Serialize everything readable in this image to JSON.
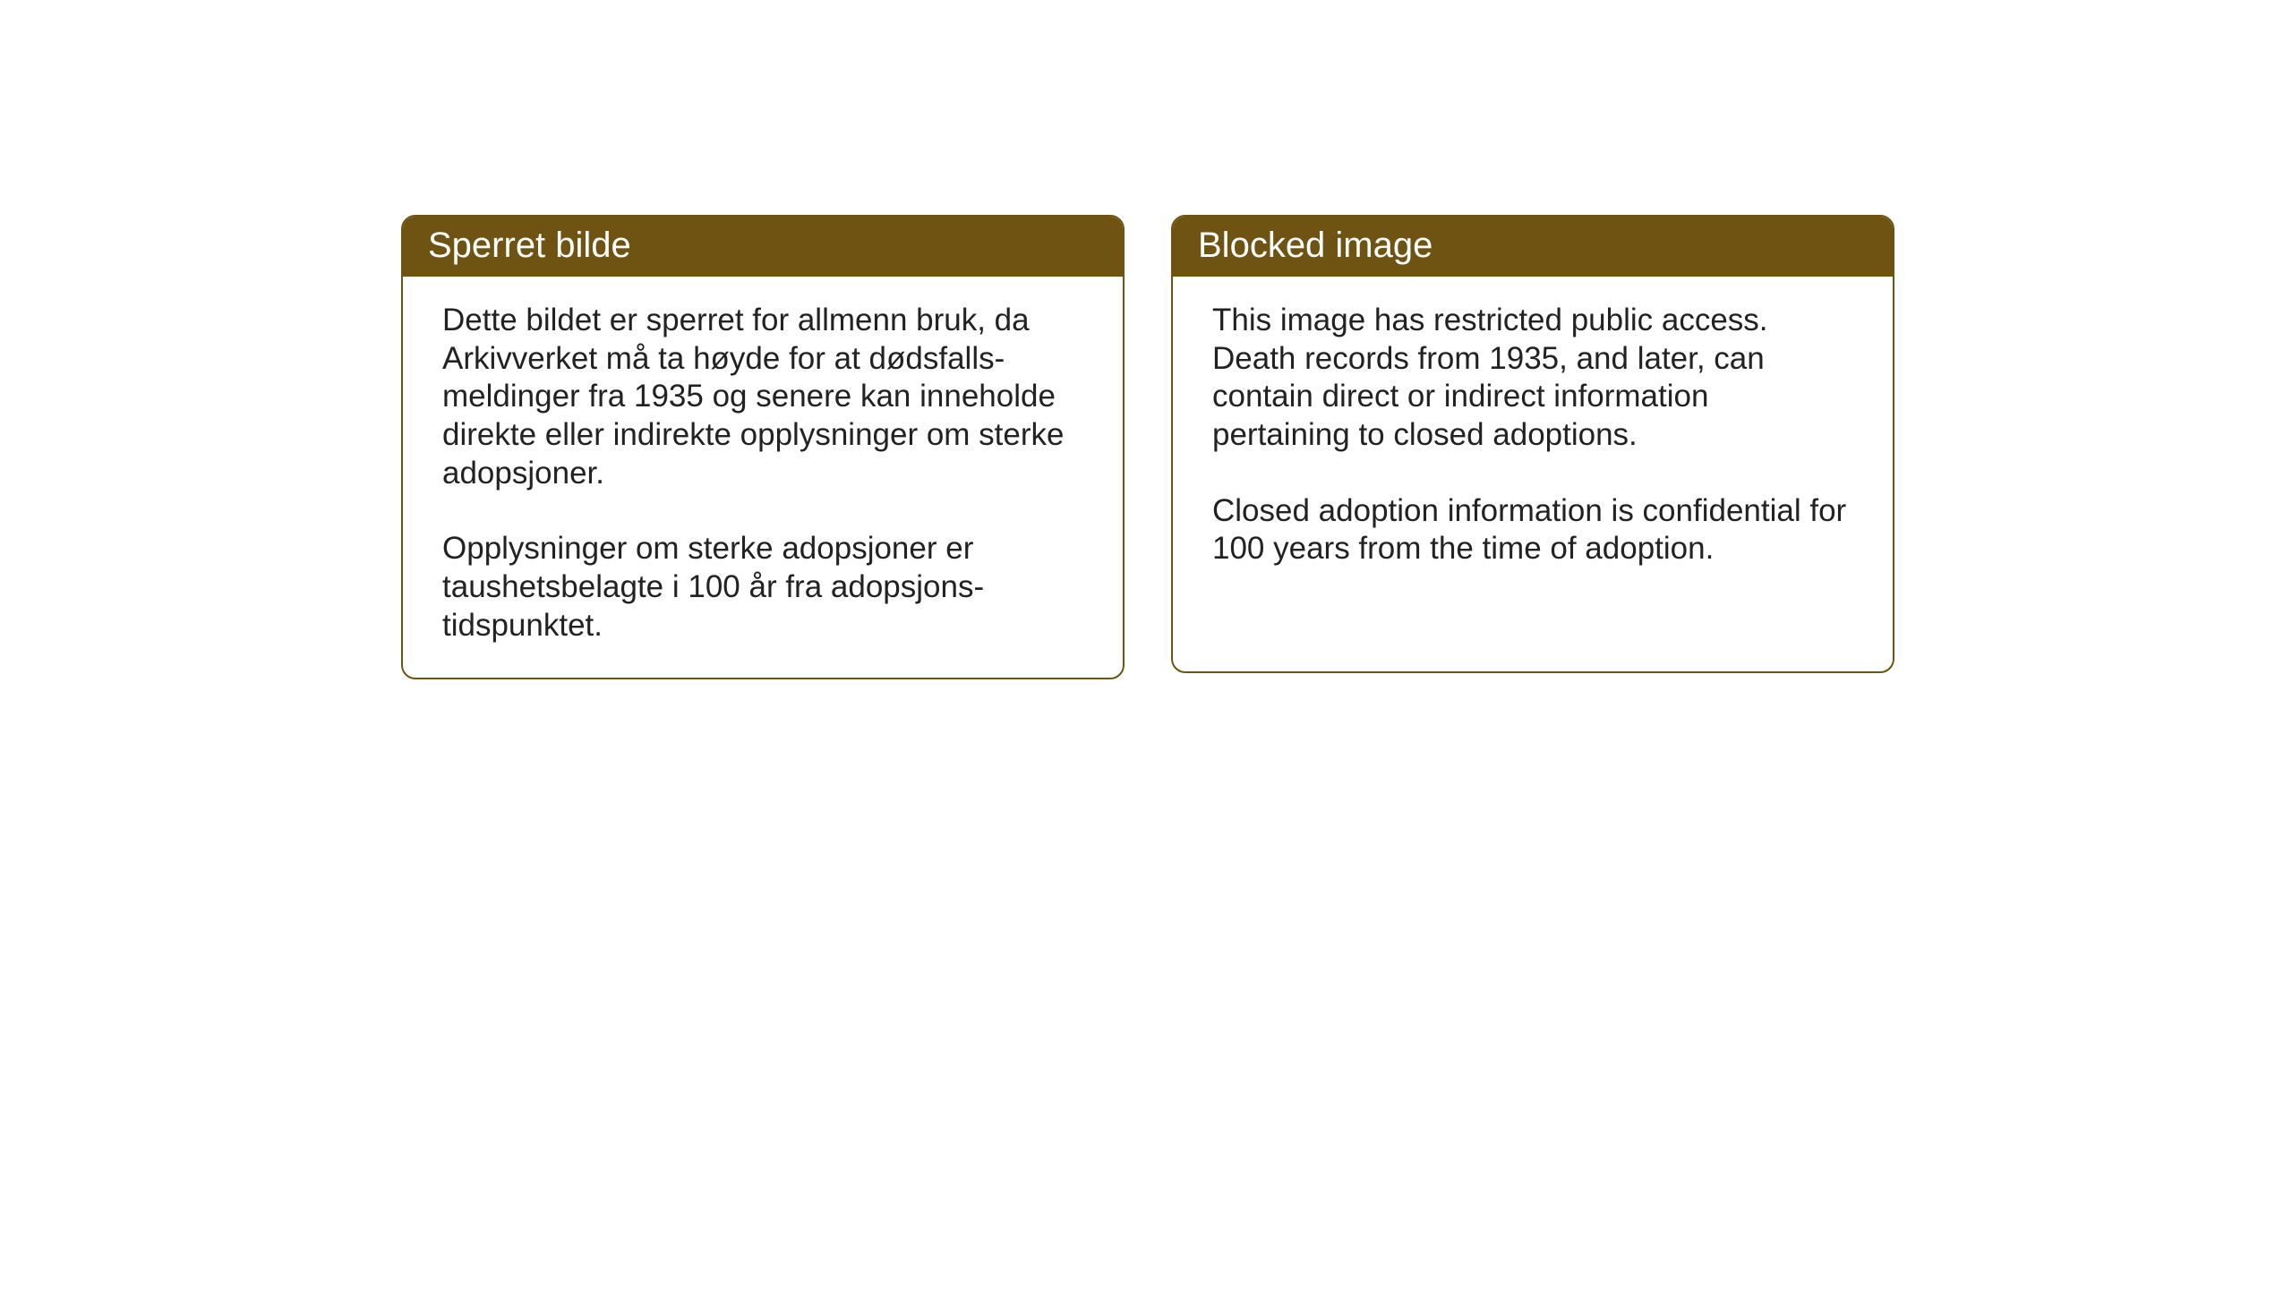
{
  "layout": {
    "background_color": "#ffffff",
    "card_border_color": "#6f5312",
    "header_bg_color": "#6f5312",
    "header_text_color": "#ffffff",
    "body_text_color": "#222222",
    "header_fontsize": 40,
    "body_fontsize": 35
  },
  "cards": {
    "norwegian": {
      "title": "Sperret bilde",
      "paragraph1": "Dette bildet er sperret for allmenn bruk, da Arkivverket må ta høyde for at dødsfalls-meldinger fra 1935 og senere kan inneholde direkte eller indirekte opplysninger om sterke adopsjoner.",
      "paragraph2": "Opplysninger om sterke adopsjoner er taushetsbelagte i 100 år fra adopsjons-tidspunktet."
    },
    "english": {
      "title": "Blocked image",
      "paragraph1": "This image has restricted public access. Death records from 1935, and later, can contain direct or indirect information pertaining to closed adoptions.",
      "paragraph2": "Closed adoption information is confidential for 100 years from the time of adoption."
    }
  }
}
